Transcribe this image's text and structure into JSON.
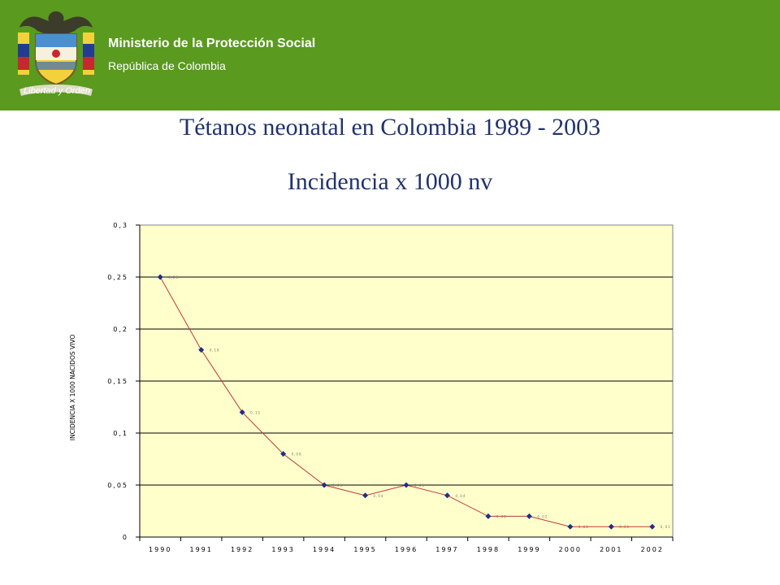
{
  "header": {
    "org_name": "Ministerio de la Protección Social",
    "org_sub": "República de Colombia",
    "logo_motto": "Libertad y Orden",
    "background_color": "#5a9a1f"
  },
  "slide": {
    "title": "Tétanos neonatal en Colombia  1989 - 2003",
    "subtitle": "Incidencia  x 1000 nv"
  },
  "chart_data": {
    "type": "line",
    "title": "Tétanos neonatal en Colombia  1989 - 2003",
    "subtitle": "Incidencia  x 1000 nv",
    "xlabel": "",
    "ylabel": "INCIDENCIA X 1000 NACIDOS VIVO",
    "categories": [
      "1990",
      "1991",
      "1992",
      "1993",
      "1994",
      "1995",
      "1996",
      "1997",
      "1998",
      "1999",
      "2000",
      "2001",
      "2002"
    ],
    "series": [
      {
        "values": [
          0.25,
          0.18,
          0.12,
          0.08,
          0.05,
          0.04,
          0.05,
          0.04,
          0.02,
          0.02,
          0.01,
          0.01,
          0.01
        ],
        "color": "#c0393b",
        "marker_color": "#1f2e8a"
      }
    ],
    "data_labels": [
      "0,25",
      "0,18",
      "0,12",
      "0,08",
      "0,05",
      "0,04",
      "0,05",
      "0,04",
      "0,02",
      "0,02",
      "0,01",
      "0,01",
      "0,01"
    ],
    "y_ticks": [
      0,
      0.05,
      0.1,
      0.15,
      0.2,
      0.25,
      0.3
    ],
    "y_tick_labels": [
      "0",
      "0,05",
      "0,1",
      "0,15",
      "0,2",
      "0,25",
      "0,3"
    ],
    "ylim": [
      0,
      0.3
    ],
    "grid": true,
    "plot_background": "#ffffcc",
    "legend": "none"
  }
}
